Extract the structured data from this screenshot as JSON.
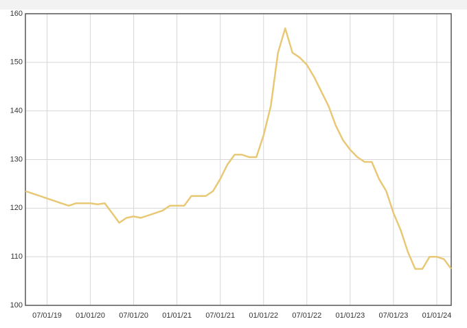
{
  "chart_data": {
    "type": "line",
    "x": [
      "04/01/19",
      "05/01/19",
      "06/01/19",
      "07/01/19",
      "08/01/19",
      "09/01/19",
      "10/01/19",
      "11/01/19",
      "12/01/19",
      "01/01/20",
      "02/01/20",
      "03/01/20",
      "04/01/20",
      "05/01/20",
      "06/01/20",
      "07/01/20",
      "08/01/20",
      "09/01/20",
      "10/01/20",
      "11/01/20",
      "12/01/20",
      "01/01/21",
      "02/01/21",
      "03/01/21",
      "04/01/21",
      "05/01/21",
      "06/01/21",
      "07/01/21",
      "08/01/21",
      "09/01/21",
      "10/01/21",
      "11/01/21",
      "12/01/21",
      "01/01/22",
      "02/01/22",
      "03/01/22",
      "04/01/22",
      "05/01/22",
      "06/01/22",
      "07/01/22",
      "08/01/22",
      "09/01/22",
      "10/01/22",
      "11/01/22",
      "12/01/22",
      "01/01/23",
      "02/01/23",
      "03/01/23",
      "04/01/23",
      "05/01/23",
      "06/01/23",
      "07/01/23",
      "08/01/23",
      "09/01/23",
      "10/01/23",
      "11/01/23",
      "12/01/23",
      "01/01/24",
      "02/01/24",
      "03/01/24"
    ],
    "series": [
      {
        "color": "#e8c874",
        "values": [
          123.5,
          123,
          122.5,
          122,
          121.5,
          121,
          120.5,
          121,
          121,
          121,
          120.8,
          121,
          119,
          117,
          118,
          118.3,
          118,
          118.5,
          119,
          119.5,
          120.5,
          120.5,
          120.5,
          122.5,
          122.5,
          122.5,
          123.5,
          126,
          129,
          131,
          131,
          130.5,
          130.5,
          135,
          141,
          152,
          157,
          152,
          151,
          149.5,
          147,
          144,
          141,
          137,
          134,
          132,
          130.5,
          129.5,
          129.5,
          126,
          123.5,
          119,
          115.5,
          111,
          107.5,
          107.5,
          110,
          110,
          109.5,
          107.5
        ]
      }
    ],
    "xlim": [
      "04/01/19",
      "03/01/24"
    ],
    "xticks": [
      "07/01/19",
      "01/01/20",
      "07/01/20",
      "01/01/21",
      "07/01/21",
      "01/01/22",
      "07/01/22",
      "01/01/23",
      "07/01/23",
      "01/01/24"
    ],
    "ylim": [
      100,
      160
    ],
    "yticks": [
      100,
      110,
      120,
      130,
      140,
      150,
      160
    ],
    "grid": true
  }
}
